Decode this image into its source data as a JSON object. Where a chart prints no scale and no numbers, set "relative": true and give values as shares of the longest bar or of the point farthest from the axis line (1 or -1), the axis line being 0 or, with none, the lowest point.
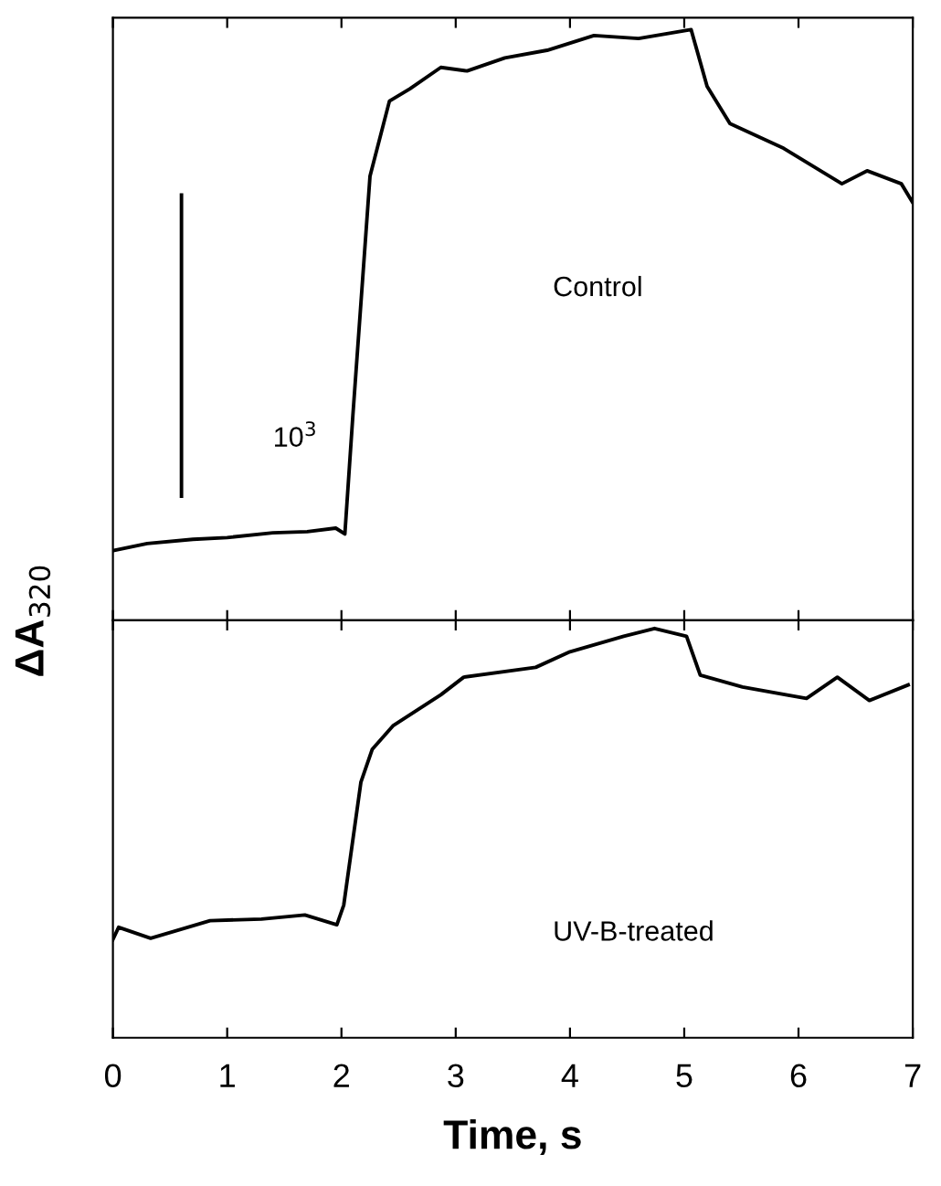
{
  "chart_data": [
    {
      "type": "line",
      "relative": true,
      "ylabel": "ΔA$_{320}$",
      "annotations": [
        "Control",
        "10$^{3}$"
      ],
      "xlim": [
        0,
        7
      ],
      "xticks": [
        {
          "value": 0,
          "label": null
        },
        {
          "value": 1,
          "label": null
        },
        {
          "value": 2,
          "label": null
        },
        {
          "value": 3,
          "label": null
        },
        {
          "value": 4,
          "label": null
        },
        {
          "value": 5,
          "label": null
        },
        {
          "value": 6,
          "label": null
        },
        {
          "value": 7,
          "label": null
        }
      ],
      "tick_labels": false,
      "grid": false,
      "legend": false,
      "series": [
        {
          "color": "#000000",
          "x": [
            0,
            0.3,
            0.7,
            1.0,
            1.4,
            1.7,
            1.95,
            2.03,
            2.1,
            2.25,
            2.42,
            2.6,
            2.87,
            3.1,
            3.43,
            3.8,
            4.21,
            4.6,
            5.06,
            5.2,
            5.4,
            5.87,
            6.38,
            6.6,
            6.9,
            7.0
          ],
          "values": [
            0.118,
            0.13,
            0.137,
            0.14,
            0.148,
            0.15,
            0.156,
            0.146,
            0.347,
            0.752,
            0.879,
            0.9,
            0.936,
            0.93,
            0.952,
            0.965,
            0.99,
            0.985,
            1.0,
            0.904,
            0.841,
            0.799,
            0.739,
            0.761,
            0.739,
            0.707
          ]
        },
        {
          "color": "#000000",
          "x": [
            0.6,
            0.6
          ],
          "values": [
            0.21,
            0.72
          ]
        }
      ]
    },
    {
      "type": "line",
      "relative": true,
      "xlabel": "Time, s",
      "annotations": [
        "UV-B-treated"
      ],
      "xlim": [
        0,
        7
      ],
      "xticks": [
        0,
        1,
        2,
        3,
        4,
        5,
        6,
        7
      ],
      "tick_labels": "x",
      "grid": false,
      "legend": false,
      "series": [
        {
          "color": "#000000",
          "x": [
            0,
            0.05,
            0.33,
            0.85,
            1.3,
            1.68,
            1.96,
            2.02,
            2.17,
            2.27,
            2.45,
            2.87,
            3.07,
            3.7,
            4.0,
            4.47,
            4.74,
            5.02,
            5.14,
            5.51,
            6.07,
            6.34,
            6.62,
            6.96
          ],
          "values": [
            0.24,
            0.27,
            0.243,
            0.286,
            0.29,
            0.3,
            0.276,
            0.324,
            0.624,
            0.705,
            0.762,
            0.838,
            0.881,
            0.905,
            0.943,
            0.981,
            1.0,
            0.981,
            0.886,
            0.857,
            0.829,
            0.881,
            0.824,
            0.862
          ]
        }
      ]
    }
  ]
}
